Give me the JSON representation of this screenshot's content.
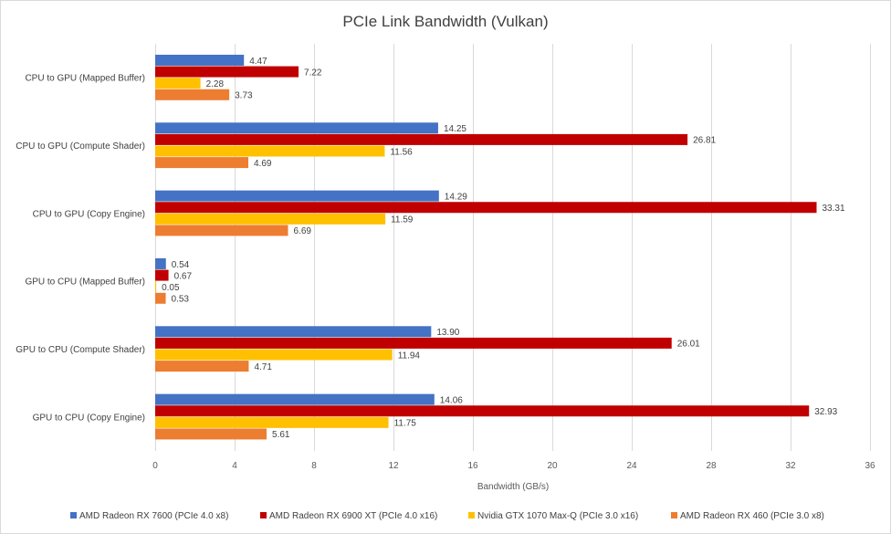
{
  "chart_data": {
    "type": "bar",
    "orientation": "horizontal",
    "title": "PCIe Link Bandwidth (Vulkan)",
    "xlabel": "Bandwidth (GB/s)",
    "ylabel": "",
    "xlim": [
      0,
      36
    ],
    "x_ticks": [
      0,
      4,
      8,
      12,
      16,
      20,
      24,
      28,
      32,
      36
    ],
    "grid": true,
    "legend_position": "bottom",
    "categories": [
      "CPU to GPU (Mapped Buffer)",
      "CPU to GPU (Compute Shader)",
      "CPU to GPU (Copy Engine)",
      "GPU to CPU (Mapped Buffer)",
      "GPU to CPU (Compute Shader)",
      "GPU to CPU (Copy Engine)"
    ],
    "series": [
      {
        "name": "AMD Radeon RX 7600 (PCIe 4.0 x8)",
        "color": "#4472c4",
        "values": [
          4.47,
          14.25,
          14.29,
          0.54,
          13.9,
          14.06
        ]
      },
      {
        "name": "AMD Radeon RX 6900 XT (PCIe 4.0 x16)",
        "color": "#c00000",
        "values": [
          7.22,
          26.81,
          33.31,
          0.67,
          26.01,
          32.93
        ]
      },
      {
        "name": "Nvidia GTX 1070 Max-Q (PCIe 3.0 x16)",
        "color": "#ffc000",
        "values": [
          2.28,
          11.56,
          11.59,
          0.05,
          11.94,
          11.75
        ]
      },
      {
        "name": "AMD Radeon RX 460 (PCIe 3.0 x8)",
        "color": "#ed7d31",
        "values": [
          3.73,
          4.69,
          6.69,
          0.53,
          4.71,
          5.61
        ]
      }
    ]
  }
}
